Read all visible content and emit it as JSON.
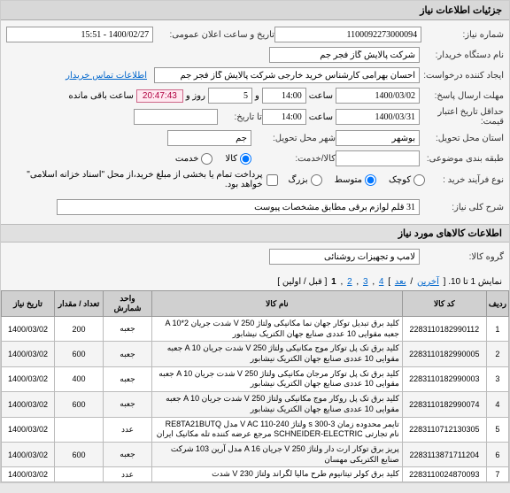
{
  "header": "جزئیات اطلاعات نیاز",
  "labels": {
    "need_number": "شماره نیاز:",
    "announce_date": "تاریخ و ساعت اعلان عمومی:",
    "buyer_org": "نام دستگاه خریدار:",
    "creator": "ایجاد کننده درخواست:",
    "contact": "اطلاعات تماس خریدار",
    "deadline": "مهلت ارسال پاسخ:",
    "hour": "ساعت",
    "and": "و",
    "day": "روز و",
    "remaining": "ساعت باقی مانده",
    "price_validity": "حداقل تاریخ اعتبار قیمت:",
    "to_date": "تا تاریخ:",
    "delivery_province": "استان محل تحویل:",
    "delivery_city": "شهر محل تحویل:",
    "budget_category": "طبقه بندی موضوعی:",
    "good_service": "کالا/خدمت:",
    "purchase_type": "نوع فرآیند خرید :",
    "general_desc": "شرح کلی نیاز:"
  },
  "values": {
    "need_number": "1100092273000094",
    "announce_date": "1400/02/27 - 15:51",
    "buyer_org": "شرکت پالایش گاز فجر جم",
    "creator": "احسان بهرامی کارشناس خرید خارجی شرکت پالایش گاز فجر جم",
    "deadline_date": "1400/03/02",
    "deadline_time": "14:00",
    "days_left": "5",
    "countdown": "20:47:43",
    "price_validity_date": "1400/03/31",
    "price_validity_time": "14:00",
    "to_date": "",
    "delivery_province": "بوشهر",
    "delivery_city": "جم",
    "budget_category": "",
    "good": "کالا",
    "service": "خدمت",
    "small": "کوچک",
    "medium": "متوسط",
    "large": "بزرگ",
    "payment_note": "پرداخت تمام یا بخشی از مبلغ خرید،از محل \"اسناد خزانه اسلامی\" خواهد بود.",
    "general_desc": "31 قلم لوازم برقی مطابق مشخصات پیوست"
  },
  "section2": "اطلاعات کالاهای مورد نیاز",
  "group_label": "گروه کالا:",
  "group_value": "لامپ و تجهیزات روشنائی",
  "pager": {
    "text_prefix": "نمایش 1 تا 10. [ ",
    "last": "آخرین",
    "next": "بعد",
    "pages": [
      "4",
      "3",
      "2"
    ],
    "current": "1",
    "first": "قبل / اولین",
    "text_suffix": " ]"
  },
  "table": {
    "headers": [
      "ردیف",
      "کد کالا",
      "نام کالا",
      "واحد شمارش",
      "تعداد / مقدار",
      "تاریخ نیاز"
    ],
    "rows": [
      {
        "idx": "1",
        "code": "2283110182990112",
        "name": "کلید برق تبدیل توکار جهان نما مکانیکی ولتاژ V 250 شدت جریان A 10*2 جعبه مقوایی 10 عددی صنایع جهان الکتریک نیشابور",
        "unit": "جعبه",
        "qty": "200",
        "date": "1400/03/02"
      },
      {
        "idx": "2",
        "code": "2283110182990005",
        "name": "کلید برق تک پل توکار موج مکانیکی ولتاژ V 250 شدت جریان A 10 جعبه مقوایی 10 عددی صنایع جهان الکتریک نیشابور",
        "unit": "جعبه",
        "qty": "600",
        "date": "1400/03/02"
      },
      {
        "idx": "3",
        "code": "2283110182990003",
        "name": "کلید برق تک پل توکار مرجان مکانیکی ولتاژ V 250 شدت جریان A 10 جعبه مقوایی 10 عددی صنایع جهان الکتریک نیشابور",
        "unit": "جعبه",
        "qty": "400",
        "date": "1400/03/02"
      },
      {
        "idx": "4",
        "code": "2283110182990074",
        "name": "کلید برق تک پل روکار موج مکانیکی ولتاژ V 250 شدت جریان A 10 جعبه مقوایی 10 عددی صنایع جهان الکتریک نیشابور",
        "unit": "جعبه",
        "qty": "600",
        "date": "1400/03/02"
      },
      {
        "idx": "5",
        "code": "2283110712130305",
        "name": "تایمر محدوده زمان s 300-3 ولتاژ V AC 110-240 مدل RE8TA21BUTQ نام تجارتی SCHNEIDER-ELECTRIC مرجع عرضه کننده تله مکانیک ایران",
        "unit": "عدد",
        "qty": "",
        "date": "1400/03/02"
      },
      {
        "idx": "6",
        "code": "2283113871711204",
        "name": "پریز برق توکار ارت دار ولتاژ V 250 جریان A 16 مدل آرین 103 شرکت صنایع الکتریکی مهسان",
        "unit": "جعبه",
        "qty": "600",
        "date": "1400/03/02"
      },
      {
        "idx": "7",
        "code": "2283110024870093",
        "name": "کلید برق کولر تیتانیوم طرح مالیا لگراند ولتاژ V 230 شدت",
        "unit": "عدد",
        "qty": "",
        "date": "1400/03/02"
      }
    ]
  }
}
